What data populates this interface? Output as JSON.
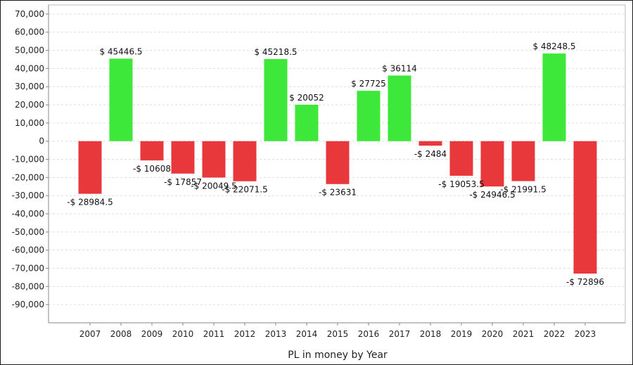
{
  "chart_data": {
    "type": "bar",
    "xlabel": "PL in money by Year",
    "ylabel": "",
    "ylim": [
      -100000,
      75000
    ],
    "yticks": [
      70000,
      60000,
      50000,
      40000,
      30000,
      20000,
      10000,
      0,
      -10000,
      -20000,
      -30000,
      -40000,
      -50000,
      -60000,
      -70000,
      -80000,
      -90000
    ],
    "ytick_labels": [
      "70,000",
      "60,000",
      "50,000",
      "40,000",
      "30,000",
      "20,000",
      "10,000",
      "0",
      "-10,000",
      "-20,000",
      "-30,000",
      "-40,000",
      "-50,000",
      "-60,000",
      "-70,000",
      "-80,000",
      "-90,000"
    ],
    "grid": true,
    "categories": [
      "2007",
      "2008",
      "2009",
      "2010",
      "2011",
      "2012",
      "2013",
      "2014",
      "2015",
      "2016",
      "2017",
      "2018",
      "2019",
      "2020",
      "2021",
      "2022",
      "2023"
    ],
    "values": [
      -28984.5,
      45446.5,
      -10608,
      -17857,
      -20049.5,
      -22071.5,
      45218.5,
      20052,
      -23631,
      27725,
      36114,
      -2484,
      -19053.5,
      -24946.5,
      -21991.5,
      48248.5,
      -72896
    ],
    "data_labels": [
      "-$ 28984.5",
      "$ 45446.5",
      "-$ 10608",
      "-$ 17857",
      "-$ 20049.5",
      "-$ 22071.5",
      "$ 45218.5",
      "$ 20052",
      "-$ 23631",
      "$ 27725",
      "$ 36114",
      "-$ 2484",
      "-$ 19053.5",
      "-$ 24946.5",
      "-$ 21991.5",
      "$ 48248.5",
      "-$ 72896"
    ],
    "colors": {
      "positive": "#3ee83a",
      "negative": "#e8383c",
      "grid": "#dddddd",
      "axis": "#888888"
    }
  }
}
